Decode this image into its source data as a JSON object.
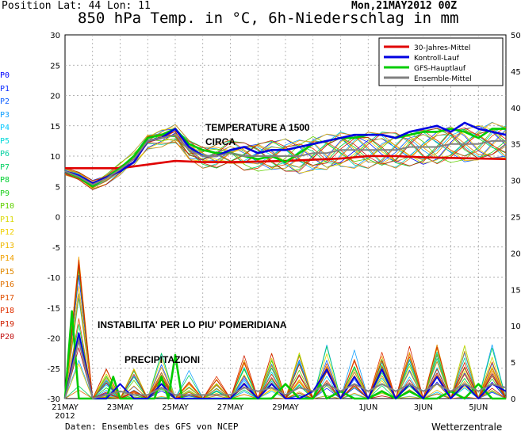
{
  "header": {
    "position": "Position  Lat: 44 Lon: 11",
    "date": "Mon,21MAY2012 00Z",
    "title": "850 hPa Temp. in °C, 6h-Niederschlag in mm"
  },
  "footer": {
    "source": "Daten: Ensembles des GFS von NCEP",
    "brand": "Wetterzentrale"
  },
  "members": [
    {
      "label": "P0",
      "color": "#0000ff"
    },
    {
      "label": "P1",
      "color": "#1030ff"
    },
    {
      "label": "P2",
      "color": "#1060ff"
    },
    {
      "label": "P3",
      "color": "#10a0ff"
    },
    {
      "label": "P4",
      "color": "#00c8ff"
    },
    {
      "label": "P5",
      "color": "#00d8d8"
    },
    {
      "label": "P6",
      "color": "#00d0a0"
    },
    {
      "label": "P7",
      "color": "#00d060"
    },
    {
      "label": "P8",
      "color": "#00d030"
    },
    {
      "label": "P9",
      "color": "#20d020"
    },
    {
      "label": "P10",
      "color": "#60d000"
    },
    {
      "label": "P11",
      "color": "#d8d800"
    },
    {
      "label": "P12",
      "color": "#f0d000"
    },
    {
      "label": "P13",
      "color": "#f0b800"
    },
    {
      "label": "P14",
      "color": "#f0a000"
    },
    {
      "label": "P15",
      "color": "#e08800"
    },
    {
      "label": "P16",
      "color": "#e07000"
    },
    {
      "label": "P17",
      "color": "#e05000"
    },
    {
      "label": "P18",
      "color": "#e03000"
    },
    {
      "label": "P19",
      "color": "#d02000"
    },
    {
      "label": "P20",
      "color": "#c01010"
    }
  ],
  "annotations": {
    "temp_1": "TEMPERATURE A 1500",
    "temp_2": "CIRCA",
    "instab": "INSTABILITA' PER LO PIU' POMERIDIANA",
    "precip": "PRECIPITAZIONI"
  },
  "colors": {
    "clim": "#e00000",
    "control": "#0000e0",
    "main": "#00cc00",
    "mean": "#808080"
  },
  "chart_data": {
    "type": "line",
    "x_ticks": [
      {
        "label": "21MAY",
        "sub": "2012",
        "day": 0
      },
      {
        "label": "23MAY",
        "sub": "",
        "day": 2
      },
      {
        "label": "25MAY",
        "sub": "",
        "day": 4
      },
      {
        "label": "27MAY",
        "sub": "",
        "day": 6
      },
      {
        "label": "29MAY",
        "sub": "",
        "day": 8
      },
      {
        "label": "1JUN",
        "sub": "",
        "day": 11
      },
      {
        "label": "3JUN",
        "sub": "",
        "day": 13
      },
      {
        "label": "5JUN",
        "sub": "",
        "day": 15
      }
    ],
    "x_range_days": [
      0,
      16
    ],
    "y_left": {
      "min": -30,
      "max": 30,
      "ticks": [
        -30,
        -25,
        -20,
        -15,
        -10,
        -5,
        0,
        5,
        10,
        15,
        20,
        25,
        30
      ]
    },
    "y_right": {
      "min": 0,
      "max": 50,
      "ticks": [
        0,
        5,
        10,
        15,
        20,
        25,
        30,
        35,
        40,
        45,
        50
      ]
    },
    "legend": {
      "placement": "top-right",
      "entries": [
        {
          "name": "30-Jahres-Mittel",
          "color": "#e00000"
        },
        {
          "name": "Kontroll-Lauf",
          "color": "#0000e0"
        },
        {
          "name": "GFS-Hauptlauf",
          "color": "#00cc00"
        },
        {
          "name": "Ensemble-Mittel",
          "color": "#808080"
        }
      ]
    },
    "series_temp": [
      {
        "name": "30-Jahres-Mittel",
        "axis": "left",
        "x": [
          0,
          1,
          2,
          3,
          4,
          5,
          6,
          7,
          8,
          9,
          10,
          11,
          12,
          13,
          14,
          15,
          16
        ],
        "y": [
          8.0,
          8.0,
          8.0,
          8.6,
          9.2,
          9.0,
          9.0,
          9.1,
          9.2,
          9.4,
          9.6,
          10.0,
          10.0,
          9.8,
          9.7,
          9.6,
          9.5
        ]
      },
      {
        "name": "GFS-Hauptlauf",
        "axis": "left",
        "x": [
          0,
          0.5,
          1,
          1.5,
          2,
          2.5,
          3,
          3.5,
          4,
          4.5,
          5,
          5.5,
          6,
          6.5,
          7,
          7.5,
          8,
          8.5,
          9,
          9.5,
          10,
          10.5,
          11,
          11.5,
          12,
          12.5,
          13,
          13.5,
          14,
          14.5,
          15,
          15.5,
          16
        ],
        "y": [
          7.5,
          6.5,
          5.0,
          6.5,
          8.0,
          10.0,
          13.0,
          13.5,
          14.5,
          12.0,
          11.0,
          10.5,
          10.5,
          10.0,
          9.5,
          10.0,
          9.0,
          10.5,
          12.0,
          12.5,
          13.0,
          13.0,
          13.5,
          13.5,
          13.0,
          13.5,
          14.0,
          14.0,
          14.5,
          14.0,
          13.0,
          14.5,
          14.5
        ]
      },
      {
        "name": "Kontroll-Lauf",
        "axis": "left",
        "x": [
          0,
          0.5,
          1,
          1.5,
          2,
          2.5,
          3,
          3.5,
          4,
          4.5,
          5,
          5.5,
          6,
          6.5,
          7,
          7.5,
          8,
          8.5,
          9,
          9.5,
          10,
          10.5,
          11,
          11.5,
          12,
          12.5,
          13,
          13.5,
          14,
          14.5,
          15,
          15.5,
          16
        ],
        "y": [
          7.5,
          6.8,
          5.5,
          6.5,
          7.5,
          9.0,
          12.5,
          13.0,
          14.5,
          11.5,
          10.0,
          10.0,
          11.0,
          11.5,
          10.5,
          11.0,
          11.0,
          11.5,
          12.0,
          12.5,
          13.0,
          13.5,
          13.5,
          13.5,
          13.0,
          14.0,
          14.5,
          15.0,
          14.0,
          15.5,
          14.5,
          14.0,
          13.5
        ]
      },
      {
        "name": "Ensemble-Mittel",
        "axis": "left",
        "x": [
          0,
          0.5,
          1,
          1.5,
          2,
          2.5,
          3,
          3.5,
          4,
          4.5,
          5,
          5.5,
          6,
          6.5,
          7,
          7.5,
          8,
          8.5,
          9,
          9.5,
          10,
          10.5,
          11,
          11.5,
          12,
          12.5,
          13,
          13.5,
          14,
          14.5,
          15,
          15.5,
          16
        ],
        "y": [
          7.5,
          6.6,
          5.3,
          6.3,
          7.8,
          9.5,
          12.5,
          13.0,
          13.5,
          11.0,
          10.0,
          10.0,
          10.5,
          10.0,
          10.0,
          10.0,
          10.0,
          10.0,
          10.5,
          10.5,
          11.0,
          11.0,
          11.0,
          11.0,
          11.0,
          11.5,
          11.5,
          11.5,
          12.0,
          12.0,
          12.0,
          12.5,
          12.5
        ]
      }
    ],
    "series_precip": [
      {
        "name": "GFS-Hauptlauf",
        "axis": "right",
        "x": [
          0,
          0.25,
          0.5,
          0.75,
          1,
          1.25,
          1.5,
          1.75,
          2,
          2.25,
          2.5,
          2.75,
          3,
          3.25,
          3.5,
          3.75,
          4,
          4.25,
          4.5,
          4.75,
          5,
          5.5,
          6,
          6.25,
          6.5,
          7,
          7.5,
          8,
          8.5,
          9,
          9.25,
          9.5,
          10,
          10.5,
          11,
          11.5,
          12,
          12.5,
          13,
          13.5,
          14,
          14.5,
          15,
          15.5,
          16
        ],
        "y": [
          0,
          12,
          0,
          0,
          0,
          0,
          0,
          3,
          0,
          0,
          0,
          0,
          0,
          0,
          3,
          0,
          6,
          0,
          0,
          0,
          0,
          0,
          0,
          0,
          0,
          0,
          0,
          2,
          0,
          0,
          2,
          0,
          1,
          0,
          0,
          1,
          0,
          1,
          0,
          0,
          1,
          0,
          2,
          0,
          0
        ]
      },
      {
        "name": "Kontroll-Lauf",
        "axis": "right",
        "x": [
          0,
          0.5,
          1,
          1.5,
          2,
          2.5,
          3,
          3.5,
          4,
          4.5,
          5,
          5.5,
          6,
          6.5,
          7,
          7.5,
          8,
          8.5,
          9,
          9.5,
          10,
          10.5,
          11,
          11.5,
          12,
          12.5,
          13,
          13.5,
          14,
          14.5,
          15,
          15.5,
          16
        ],
        "y": [
          0,
          9,
          0,
          0,
          2,
          0,
          0,
          2,
          0,
          0,
          0,
          0,
          0,
          2,
          0,
          2,
          0,
          0,
          1,
          4,
          0,
          3,
          0,
          4,
          0,
          2,
          0,
          3,
          0,
          2,
          0,
          2,
          1
        ]
      },
      {
        "name": "Ensemble-Mittel",
        "axis": "right",
        "x": [
          0,
          0.5,
          1,
          1.5,
          2,
          2.5,
          3,
          3.5,
          4,
          4.5,
          5,
          5.5,
          6,
          6.5,
          7,
          7.5,
          8,
          8.5,
          9,
          9.5,
          10,
          10.5,
          11,
          11.5,
          12,
          12.5,
          13,
          13.5,
          14,
          14.5,
          15,
          15.5,
          16
        ],
        "y": [
          0,
          8,
          0,
          0.5,
          1,
          0.5,
          0.5,
          1.5,
          0.5,
          0.5,
          0.5,
          0.5,
          0.5,
          1.5,
          1,
          1.5,
          0.5,
          1.5,
          1,
          2,
          1,
          2,
          1,
          2,
          1,
          2,
          1,
          2,
          1,
          2,
          1,
          2,
          1.5
        ]
      }
    ],
    "grid": true
  }
}
